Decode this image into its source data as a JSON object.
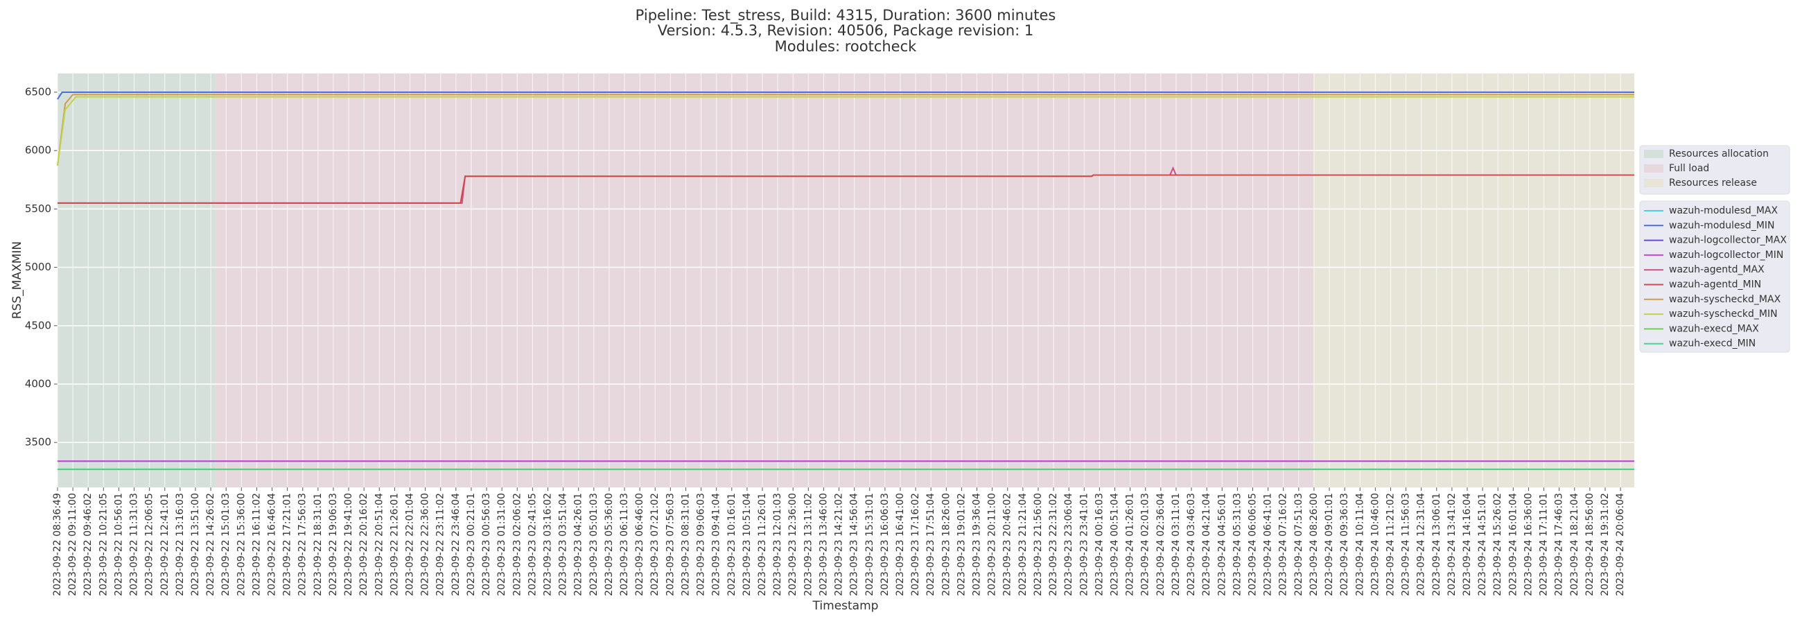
{
  "chart_data": {
    "type": "line",
    "title": [
      "Pipeline: Test_stress, Build: 4315, Duration: 3600 minutes",
      "Version: 4.5.3, Revision: 40506, Package revision: 1",
      "Modules: rootcheck"
    ],
    "x_label": "Timestamp",
    "y_label": "RSS_MAXMIN",
    "categories": [
      "2023-09-22 08:36:49",
      "2023-09-22 09:11:00",
      "2023-09-22 09:46:02",
      "2023-09-22 10:21:05",
      "2023-09-22 10:56:01",
      "2023-09-22 11:31:03",
      "2023-09-22 12:06:05",
      "2023-09-22 12:41:01",
      "2023-09-22 13:16:03",
      "2023-09-22 13:51:00",
      "2023-09-22 14:26:02",
      "2023-09-22 15:01:03",
      "2023-09-22 15:36:00",
      "2023-09-22 16:11:02",
      "2023-09-22 16:46:04",
      "2023-09-22 17:21:01",
      "2023-09-22 17:56:03",
      "2023-09-22 18:31:01",
      "2023-09-22 19:06:03",
      "2023-09-22 19:41:00",
      "2023-09-22 20:16:02",
      "2023-09-22 20:51:04",
      "2023-09-22 21:26:01",
      "2023-09-22 22:01:04",
      "2023-09-22 22:36:00",
      "2023-09-22 23:11:02",
      "2023-09-22 23:46:04",
      "2023-09-23 00:21:01",
      "2023-09-23 00:56:03",
      "2023-09-23 01:31:00",
      "2023-09-23 02:06:02",
      "2023-09-23 02:41:05",
      "2023-09-23 03:16:02",
      "2023-09-23 03:51:04",
      "2023-09-23 04:26:01",
      "2023-09-23 05:01:03",
      "2023-09-23 05:36:00",
      "2023-09-23 06:11:03",
      "2023-09-23 06:46:00",
      "2023-09-23 07:21:02",
      "2023-09-23 07:56:03",
      "2023-09-23 08:31:01",
      "2023-09-23 09:06:03",
      "2023-09-23 09:41:04",
      "2023-09-23 10:16:01",
      "2023-09-23 10:51:04",
      "2023-09-23 11:26:01",
      "2023-09-23 12:01:03",
      "2023-09-23 12:36:00",
      "2023-09-23 13:11:02",
      "2023-09-23 13:46:00",
      "2023-09-23 14:21:02",
      "2023-09-23 14:56:04",
      "2023-09-23 15:31:01",
      "2023-09-23 16:06:03",
      "2023-09-23 16:41:00",
      "2023-09-23 17:16:02",
      "2023-09-23 17:51:04",
      "2023-09-23 18:26:00",
      "2023-09-23 19:01:02",
      "2023-09-23 19:36:04",
      "2023-09-23 20:11:00",
      "2023-09-23 20:46:02",
      "2023-09-23 21:21:04",
      "2023-09-23 21:56:00",
      "2023-09-23 22:31:02",
      "2023-09-23 23:06:04",
      "2023-09-23 23:41:01",
      "2023-09-24 00:16:03",
      "2023-09-24 00:51:04",
      "2023-09-24 01:26:01",
      "2023-09-24 02:01:03",
      "2023-09-24 02:36:04",
      "2023-09-24 03:11:01",
      "2023-09-24 03:46:03",
      "2023-09-24 04:21:04",
      "2023-09-24 04:56:01",
      "2023-09-24 05:31:03",
      "2023-09-24 06:06:05",
      "2023-09-24 06:41:01",
      "2023-09-24 07:16:02",
      "2023-09-24 07:51:03",
      "2023-09-24 08:26:00",
      "2023-09-24 09:01:01",
      "2023-09-24 09:36:03",
      "2023-09-24 10:11:04",
      "2023-09-24 10:46:00",
      "2023-09-24 11:21:02",
      "2023-09-24 11:56:03",
      "2023-09-24 12:31:04",
      "2023-09-24 13:06:01",
      "2023-09-24 13:41:02",
      "2023-09-24 14:16:04",
      "2023-09-24 14:51:01",
      "2023-09-24 15:26:02",
      "2023-09-24 16:01:04",
      "2023-09-24 16:36:00",
      "2023-09-24 17:11:01",
      "2023-09-24 17:46:03",
      "2023-09-24 18:21:04",
      "2023-09-24 18:56:00",
      "2023-09-24 19:31:02",
      "2023-09-24 20:06:04"
    ],
    "xlim": [
      0,
      102.9
    ],
    "ylim": [
      3115,
      6660
    ],
    "yticks": [
      3500,
      4000,
      4500,
      5000,
      5500,
      6000,
      6500
    ],
    "grid": true,
    "phases": [
      {
        "name": "Resources allocation",
        "color": "#d5e0da",
        "start": 0,
        "end": 10.3
      },
      {
        "name": "Full load",
        "color": "#e7d8dd",
        "start": 10.3,
        "end": 82
      },
      {
        "name": "Resources release",
        "color": "#e6e5d8",
        "start": 82,
        "end": 102.9
      }
    ],
    "series": [
      {
        "name": "wazuh-modulesd_MAX",
        "color": "#4fcfe0",
        "x": [
          0,
          0.3,
          102.9
        ],
        "values": [
          6440,
          6500,
          6500
        ]
      },
      {
        "name": "wazuh-modulesd_MIN",
        "color": "#4a6fd1",
        "x": [
          0,
          0.3,
          102.9
        ],
        "values": [
          6440,
          6500,
          6500
        ]
      },
      {
        "name": "wazuh-logcollector_MAX",
        "color": "#6a4ad1",
        "x": [
          0,
          102.9
        ],
        "values": [
          3340,
          3340
        ]
      },
      {
        "name": "wazuh-logcollector_MIN",
        "color": "#c94ad1",
        "x": [
          0,
          102.9
        ],
        "values": [
          3340,
          3340
        ]
      },
      {
        "name": "wazuh-agentd_MAX",
        "color": "#d14a8a",
        "x": [
          0,
          26.4,
          26.6,
          67.5,
          67.6,
          72.6,
          72.8,
          73.0,
          102.9
        ],
        "values": [
          5550,
          5550,
          5780,
          5780,
          5790,
          5790,
          5850,
          5790,
          5790
        ]
      },
      {
        "name": "wazuh-agentd_MIN",
        "color": "#d14a4a",
        "x": [
          0,
          26.3,
          26.6,
          67.5,
          67.6,
          102.9
        ],
        "values": [
          5550,
          5550,
          5780,
          5780,
          5790,
          5790
        ]
      },
      {
        "name": "wazuh-syscheckd_MAX",
        "color": "#d19a4a",
        "x": [
          0,
          0.5,
          1,
          102.9
        ],
        "values": [
          5870,
          6400,
          6480,
          6480
        ]
      },
      {
        "name": "wazuh-syscheckd_MIN",
        "color": "#c4d14a",
        "x": [
          0,
          0.5,
          1.2,
          102.9
        ],
        "values": [
          5870,
          6350,
          6460,
          6460
        ]
      },
      {
        "name": "wazuh-execd_MAX",
        "color": "#6ad14a",
        "x": [
          0,
          102.9
        ],
        "values": [
          3270,
          3270
        ]
      },
      {
        "name": "wazuh-execd_MIN",
        "color": "#4ad18a",
        "x": [
          0,
          102.9
        ],
        "values": [
          3270,
          3270
        ]
      }
    ]
  }
}
